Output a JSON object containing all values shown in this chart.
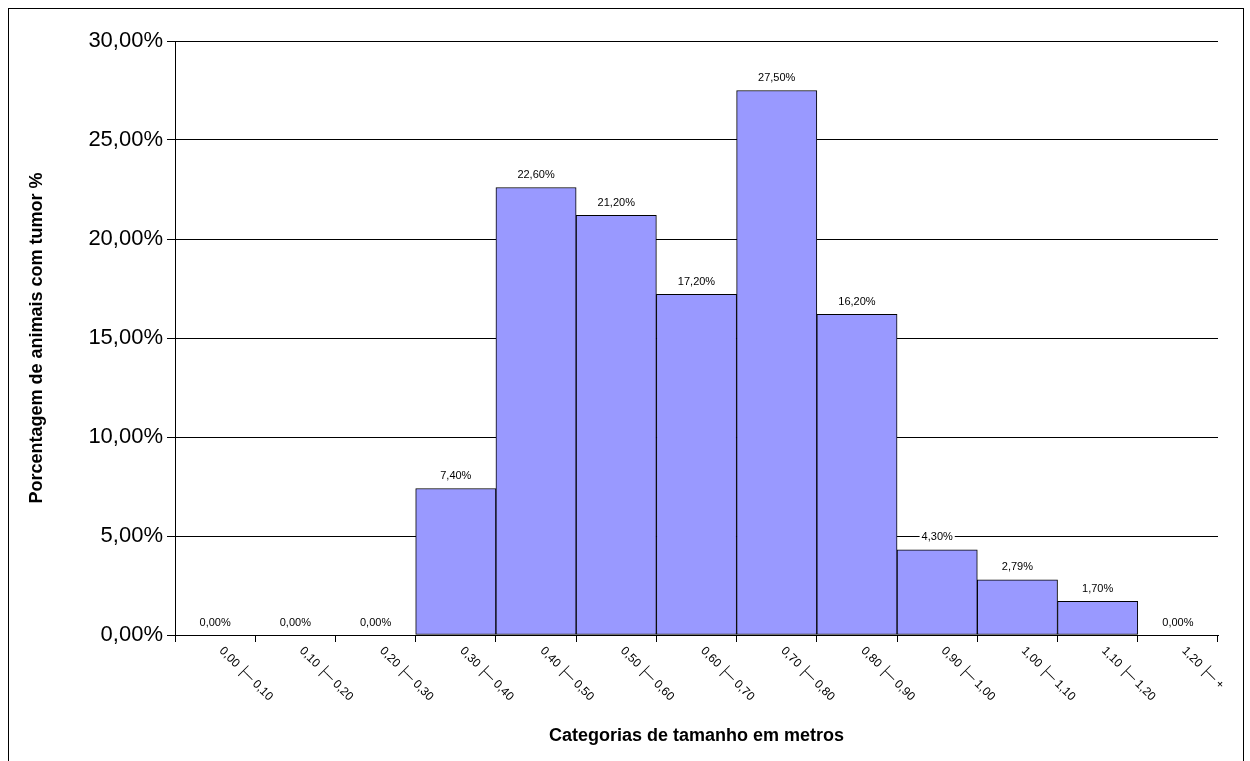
{
  "chart_data": {
    "type": "bar",
    "xlabel": "Categorias de tamanho em metros",
    "ylabel": "Porcentagem de animais com tumor %",
    "categories": [
      "0,00 ├─ 0,10",
      "0,10 ├─ 0,20",
      "0,20 ├─ 0,30",
      "0,30 ├─ 0,40",
      "0,40 ├─ 0,50",
      "0,50 ├─ 0,60",
      "0,60 ├─ 0,70",
      "0,70 ├─ 0,80",
      "0,80 ├─ 0,90",
      "0,90 ├─ 1,00",
      "1,00 ├─ 1,10",
      "1,10 ├─ 1,20",
      "1,20 ├─ +"
    ],
    "values": [
      0,
      0,
      0,
      7.4,
      22.6,
      21.2,
      17.2,
      27.5,
      16.2,
      4.3,
      2.79,
      1.7,
      0
    ],
    "value_labels": [
      "0,00%",
      "0,00%",
      "0,00%",
      "7,40%",
      "22,60%",
      "21,20%",
      "17,20%",
      "27,50%",
      "16,20%",
      "4,30%",
      "2,79%",
      "1,70%",
      "0,00%"
    ],
    "color": "#9999ff",
    "ylim": [
      0,
      30
    ],
    "yticks": [
      {
        "value": 0,
        "label": "0,00%"
      },
      {
        "value": 5,
        "label": "5,00%"
      },
      {
        "value": 10,
        "label": "10,00%"
      },
      {
        "value": 15,
        "label": "15,00%"
      },
      {
        "value": 20,
        "label": "20,00%"
      },
      {
        "value": 25,
        "label": "25,00%"
      },
      {
        "value": 30,
        "label": "30,00%"
      }
    ],
    "grid": "y"
  }
}
